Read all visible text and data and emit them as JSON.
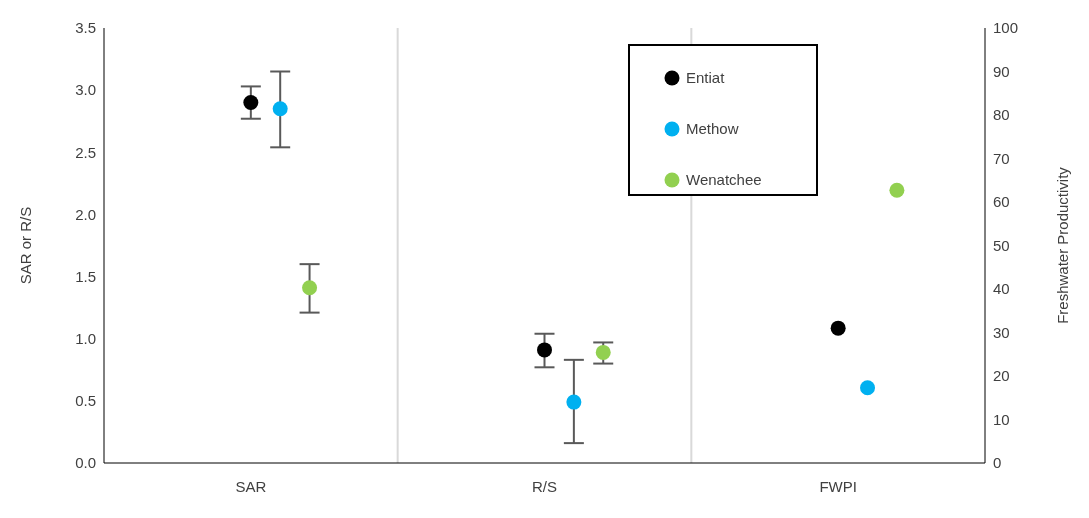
{
  "chart_data": {
    "type": "scatter",
    "categories": [
      "SAR",
      "R/S",
      "FWPI"
    ],
    "ylabel": "SAR or R/S",
    "y2label": "Freshwater Productivity",
    "ylim": [
      0,
      3.5
    ],
    "yticks": [
      {
        "value": 0,
        "label": "0.0"
      },
      {
        "value": 0.5,
        "label": "0.5"
      },
      {
        "value": 1,
        "label": "1.0"
      },
      {
        "value": 1.5,
        "label": "1.5"
      },
      {
        "value": 2,
        "label": "2.0"
      },
      {
        "value": 2.5,
        "label": "2.5"
      },
      {
        "value": 3,
        "label": "3.0"
      },
      {
        "value": 3.5,
        "label": "3.5"
      }
    ],
    "y2lim": [
      0,
      100
    ],
    "y2ticks": [
      0,
      10,
      20,
      30,
      40,
      50,
      60,
      70,
      80,
      90,
      100
    ],
    "grid": "x",
    "legend": "top right",
    "marker": "circle",
    "series": [
      {
        "name": "Entiat",
        "color": "#000000",
        "values": [
          2.9,
          0.91,
          null
        ],
        "errors": [
          [
            2.77,
            3.03
          ],
          [
            0.77,
            1.04
          ],
          null
        ]
      },
      {
        "name": "Methow",
        "color": "#00b0f0",
        "values": [
          2.85,
          0.49,
          null
        ],
        "errors": [
          [
            2.54,
            3.15
          ],
          [
            0.16,
            0.83
          ],
          null
        ]
      },
      {
        "name": "Wenatchee",
        "color": "#92d050",
        "values": [
          1.41,
          0.89,
          null
        ],
        "errors": [
          [
            1.21,
            1.6
          ],
          [
            0.8,
            0.97
          ],
          null
        ]
      },
      {
        "color": "#000000",
        "axis": "y2",
        "values": [
          null,
          null,
          31
        ]
      },
      {
        "color": "#00b0f0",
        "axis": "y2",
        "values": [
          null,
          null,
          17.3
        ]
      },
      {
        "color": "#92d050",
        "axis": "y2",
        "values": [
          null,
          null,
          62.7
        ]
      }
    ]
  }
}
